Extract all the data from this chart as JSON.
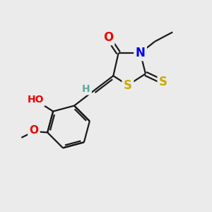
{
  "bg_color": "#ebebeb",
  "atom_colors": {
    "C": "#1a1a1a",
    "N": "#0000ee",
    "O": "#ee0000",
    "S": "#ccaa00",
    "H": "#5fa8a0"
  },
  "bond_color": "#1a1a1a",
  "bond_width": 1.6,
  "fig_size": [
    3.0,
    3.0
  ],
  "dpi": 100,
  "xlim": [
    0,
    10
  ],
  "ylim": [
    0,
    10
  ]
}
